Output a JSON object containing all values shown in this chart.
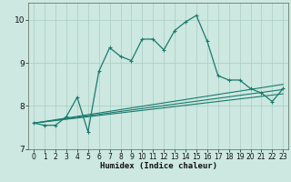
{
  "title": "",
  "xlabel": "Humidex (Indice chaleur)",
  "xlim": [
    -0.5,
    23.5
  ],
  "ylim": [
    7,
    10.4
  ],
  "yticks": [
    7,
    8,
    9,
    10
  ],
  "xticks": [
    0,
    1,
    2,
    3,
    4,
    5,
    6,
    7,
    8,
    9,
    10,
    11,
    12,
    13,
    14,
    15,
    16,
    17,
    18,
    19,
    20,
    21,
    22,
    23
  ],
  "bg_color": "#cce8e0",
  "line_color": "#1a7a6e",
  "grid_color": "#aaccC4",
  "series": [
    {
      "x": [
        0,
        1,
        2,
        3,
        4,
        5,
        6,
        7,
        8,
        9,
        10,
        11,
        12,
        13,
        14,
        15,
        16,
        17,
        18,
        19,
        20,
        21,
        22,
        23
      ],
      "y": [
        7.6,
        7.55,
        7.55,
        7.75,
        8.2,
        7.4,
        8.8,
        9.35,
        9.15,
        9.05,
        9.55,
        9.55,
        9.3,
        9.75,
        9.95,
        10.1,
        9.5,
        8.7,
        8.6,
        8.6,
        8.4,
        8.3,
        8.1,
        8.4
      ],
      "marker": "+"
    },
    {
      "x": [
        0,
        23
      ],
      "y": [
        7.6,
        8.5
      ],
      "marker": null
    },
    {
      "x": [
        0,
        23
      ],
      "y": [
        7.6,
        8.38
      ],
      "marker": null
    },
    {
      "x": [
        0,
        23
      ],
      "y": [
        7.6,
        8.28
      ],
      "marker": null
    }
  ]
}
